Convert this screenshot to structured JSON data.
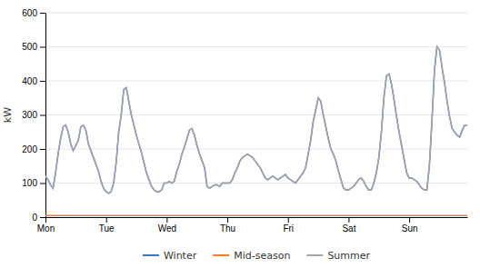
{
  "chart_data": {
    "type": "line",
    "ylabel": "kW",
    "ylim": [
      0,
      600
    ],
    "yticks": [
      0,
      100,
      200,
      300,
      400,
      500,
      600
    ],
    "grid": true,
    "legend": "bottom",
    "categories": [
      "Mon",
      null,
      null,
      null,
      null,
      null,
      null,
      null,
      null,
      null,
      null,
      null,
      null,
      null,
      null,
      null,
      null,
      null,
      null,
      null,
      null,
      null,
      null,
      null,
      "Tue",
      null,
      null,
      null,
      null,
      null,
      null,
      null,
      null,
      null,
      null,
      null,
      null,
      null,
      null,
      null,
      null,
      null,
      null,
      null,
      null,
      null,
      null,
      null,
      "Wed",
      null,
      null,
      null,
      null,
      null,
      null,
      null,
      null,
      null,
      null,
      null,
      null,
      null,
      null,
      null,
      null,
      null,
      null,
      null,
      null,
      null,
      null,
      null,
      "Thu",
      null,
      null,
      null,
      null,
      null,
      null,
      null,
      null,
      null,
      null,
      null,
      null,
      null,
      null,
      null,
      null,
      null,
      null,
      null,
      null,
      null,
      null,
      null,
      "Fri",
      null,
      null,
      null,
      null,
      null,
      null,
      null,
      null,
      null,
      null,
      null,
      null,
      null,
      null,
      null,
      null,
      null,
      null,
      null,
      null,
      null,
      null,
      null,
      "Sat",
      null,
      null,
      null,
      null,
      null,
      null,
      null,
      null,
      null,
      null,
      null,
      null,
      null,
      null,
      null,
      null,
      null,
      null,
      null,
      null,
      null,
      null,
      null,
      "Sun",
      null,
      null,
      null,
      null,
      null,
      null,
      null,
      null,
      null,
      null,
      null,
      null,
      null,
      null,
      null,
      null,
      null,
      null,
      null,
      null,
      null,
      null,
      null
    ],
    "series": [
      {
        "name": "Winter",
        "color": "#4472C4",
        "values": [
          120,
          110,
          95,
          85,
          130,
          185,
          230,
          265,
          270,
          250,
          215,
          195,
          210,
          225,
          265,
          270,
          255,
          215,
          195,
          175,
          155,
          135,
          105,
          85,
          75,
          70,
          75,
          100,
          160,
          250,
          300,
          375,
          380,
          340,
          300,
          270,
          240,
          215,
          190,
          160,
          130,
          110,
          90,
          80,
          75,
          75,
          80,
          100,
          100,
          105,
          100,
          105,
          135,
          155,
          185,
          205,
          230,
          255,
          260,
          240,
          210,
          185,
          165,
          145,
          90,
          85,
          90,
          95,
          95,
          90,
          100,
          100,
          100,
          100,
          110,
          130,
          145,
          165,
          175,
          180,
          185,
          180,
          175,
          165,
          155,
          145,
          130,
          115,
          110,
          115,
          120,
          115,
          110,
          115,
          120,
          125,
          115,
          110,
          105,
          100,
          110,
          120,
          130,
          145,
          185,
          225,
          280,
          315,
          350,
          340,
          300,
          265,
          230,
          200,
          185,
          165,
          135,
          110,
          85,
          80,
          80,
          85,
          90,
          100,
          110,
          115,
          105,
          90,
          80,
          80,
          100,
          130,
          175,
          250,
          350,
          415,
          420,
          390,
          345,
          295,
          250,
          210,
          170,
          130,
          115,
          115,
          110,
          105,
          95,
          85,
          80,
          80,
          150,
          280,
          430,
          500,
          490,
          440,
          395,
          340,
          295,
          260,
          250,
          240,
          235,
          255,
          270,
          270
        ]
      },
      {
        "name": "Mid-season",
        "color": "#ED7D31",
        "values": [
          5,
          5,
          5,
          5,
          5,
          5,
          5,
          5,
          5,
          5,
          5,
          5,
          5,
          5,
          5,
          5,
          5,
          5,
          5,
          5,
          5,
          5,
          5,
          5,
          5,
          5,
          5,
          5,
          5,
          5,
          5,
          5,
          5,
          5,
          5,
          5,
          5,
          5,
          5,
          5,
          5,
          5,
          5,
          5,
          5,
          5,
          5,
          5,
          5,
          5,
          5,
          5,
          5,
          5,
          5,
          5,
          5,
          5,
          5,
          5,
          5,
          5,
          5,
          5,
          5,
          5,
          5,
          5,
          5,
          5,
          5,
          5,
          5,
          5,
          5,
          5,
          5,
          5,
          5,
          5,
          5,
          5,
          5,
          5,
          5,
          5,
          5,
          5,
          5,
          5,
          5,
          5,
          5,
          5,
          5,
          5,
          5,
          5,
          5,
          5,
          5,
          5,
          5,
          5,
          5,
          5,
          5,
          5,
          5,
          5,
          5,
          5,
          5,
          5,
          5,
          5,
          5,
          5,
          5,
          5,
          5,
          5,
          5,
          5,
          5,
          5,
          5,
          5,
          5,
          5,
          5,
          5,
          5,
          5,
          5,
          5,
          5,
          5,
          5,
          5,
          5,
          5,
          5,
          5,
          5,
          5,
          5,
          5,
          5,
          5,
          5,
          5,
          5,
          5,
          5,
          5,
          5,
          5,
          5,
          5,
          5,
          5,
          5,
          5,
          5,
          5,
          5,
          5
        ]
      },
      {
        "name": "Summer",
        "color": "#A5A5A5",
        "values": [
          120,
          110,
          95,
          85,
          130,
          185,
          230,
          265,
          270,
          250,
          215,
          195,
          210,
          225,
          265,
          270,
          255,
          215,
          195,
          175,
          155,
          135,
          105,
          85,
          75,
          70,
          75,
          100,
          160,
          250,
          300,
          375,
          380,
          340,
          300,
          270,
          240,
          215,
          190,
          160,
          130,
          110,
          90,
          80,
          75,
          75,
          80,
          100,
          100,
          105,
          100,
          105,
          135,
          155,
          185,
          205,
          230,
          255,
          260,
          240,
          210,
          185,
          165,
          145,
          90,
          85,
          90,
          95,
          95,
          90,
          100,
          100,
          100,
          100,
          110,
          130,
          145,
          165,
          175,
          180,
          185,
          180,
          175,
          165,
          155,
          145,
          130,
          115,
          110,
          115,
          120,
          115,
          110,
          115,
          120,
          125,
          115,
          110,
          105,
          100,
          110,
          120,
          130,
          145,
          185,
          225,
          280,
          315,
          350,
          340,
          300,
          265,
          230,
          200,
          185,
          165,
          135,
          110,
          85,
          80,
          80,
          85,
          90,
          100,
          110,
          115,
          105,
          90,
          80,
          80,
          100,
          130,
          175,
          250,
          350,
          415,
          420,
          390,
          345,
          295,
          250,
          210,
          170,
          130,
          115,
          115,
          110,
          105,
          95,
          85,
          80,
          80,
          150,
          280,
          430,
          500,
          490,
          440,
          395,
          340,
          295,
          260,
          250,
          240,
          235,
          255,
          270,
          270
        ]
      }
    ]
  }
}
